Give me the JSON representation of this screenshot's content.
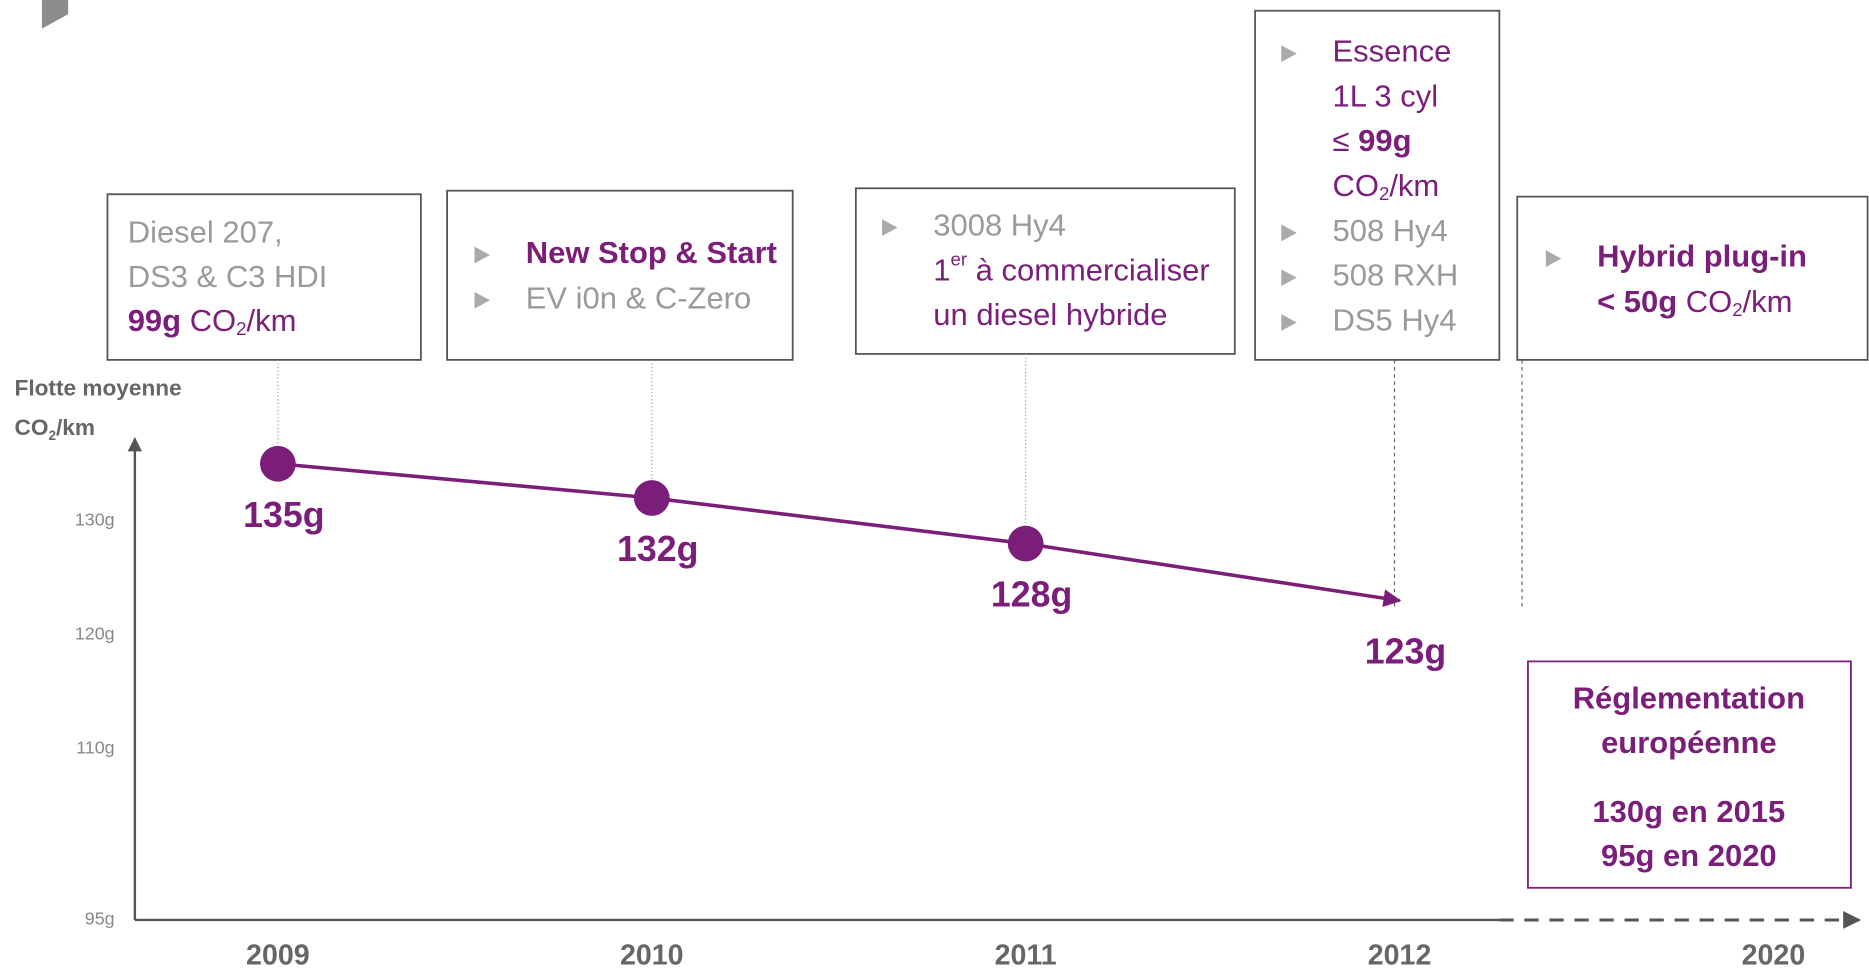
{
  "chart_data": {
    "type": "line",
    "y_label": [
      "Flotte moyenne",
      [
        {
          "t": "CO"
        },
        {
          "t": "2",
          "sub": true
        },
        {
          "t": "/km"
        }
      ]
    ],
    "categories": [
      "2009",
      "2010",
      "2011",
      "2012",
      "2020"
    ],
    "series": [
      {
        "name": "Flotte moyenne",
        "color": "#7b1e7a",
        "values": [
          135,
          132,
          128,
          123,
          null
        ],
        "value_labels": [
          "135g",
          "132g",
          "128g",
          "123g",
          null
        ]
      }
    ],
    "end_arrow": true,
    "ylim": [
      95,
      137
    ],
    "yticks": [
      {
        "value": 95,
        "label": "95g"
      },
      {
        "value": 110,
        "label": "110g"
      },
      {
        "value": 120,
        "label": "120g"
      },
      {
        "value": 130,
        "label": "130g"
      }
    ],
    "grid": false,
    "annotations": [
      {
        "bullets": false,
        "items": [
          {
            "lines": [
              [
                {
                  "t": "Diesel 207,"
                }
              ],
              [
                {
                  "t": "DS3 & C3 HDI"
                }
              ],
              [
                {
                  "t": "99g",
                  "b": true,
                  "p": true
                },
                {
                  "t": " CO",
                  "p": true
                },
                {
                  "t": "2",
                  "sub": true,
                  "p": true
                },
                {
                  "t": "/km",
                  "p": true
                }
              ]
            ]
          }
        ]
      },
      {
        "bullets": true,
        "items": [
          {
            "lines": [
              [
                {
                  "t": "New Stop & Start",
                  "b": true,
                  "p": true
                }
              ]
            ]
          },
          {
            "lines": [
              [
                {
                  "t": "EV i0n & C-Zero"
                }
              ]
            ]
          }
        ]
      },
      {
        "bullets": true,
        "items": [
          {
            "lines": [
              [
                {
                  "t": "3008 Hy4"
                }
              ],
              [
                {
                  "t": "1",
                  "p": true
                },
                {
                  "t": "er",
                  "sup": true,
                  "p": true
                },
                {
                  "t": " à commercialiser",
                  "p": true
                }
              ],
              [
                {
                  "t": "un diesel hybride",
                  "p": true
                }
              ]
            ]
          }
        ]
      },
      {
        "bullets": true,
        "items": [
          {
            "lines": [
              [
                {
                  "t": "Essence",
                  "p": true
                }
              ],
              [
                {
                  "t": "1L 3 cyl",
                  "p": true
                }
              ],
              [
                {
                  "t": "≤ ",
                  "p": true
                },
                {
                  "t": "99g",
                  "b": true,
                  "p": true
                }
              ],
              [
                {
                  "t": "CO",
                  "p": true
                },
                {
                  "t": "2",
                  "sub": true,
                  "p": true
                },
                {
                  "t": "/km",
                  "p": true
                }
              ]
            ]
          },
          {
            "lines": [
              [
                {
                  "t": "508 Hy4"
                }
              ]
            ]
          },
          {
            "lines": [
              [
                {
                  "t": "508 RXH"
                }
              ]
            ]
          },
          {
            "lines": [
              [
                {
                  "t": "DS5 Hy4"
                }
              ]
            ]
          }
        ]
      },
      {
        "bullets": true,
        "items": [
          {
            "lines": [
              [
                {
                  "t": "Hybrid plug-in",
                  "b": true,
                  "p": true
                }
              ],
              [
                {
                  "t": "< 50g",
                  "b": true,
                  "p": true
                },
                {
                  "t": " CO",
                  "p": true
                },
                {
                  "t": "2",
                  "sub": true,
                  "p": true
                },
                {
                  "t": "/km",
                  "p": true
                }
              ]
            ]
          }
        ]
      },
      {
        "bullets": false,
        "items": [
          {
            "lines": [
              [
                {
                  "t": "Réglementation",
                  "b": true,
                  "p": true
                }
              ],
              [
                {
                  "t": "européenne",
                  "b": true,
                  "p": true
                }
              ]
            ]
          },
          {
            "lines": [
              [
                {
                  "t": "130g en 2015",
                  "b": true,
                  "p": true
                }
              ],
              [
                {
                  "t": "95g en 2020",
                  "b": true,
                  "p": true
                }
              ]
            ]
          }
        ]
      }
    ]
  }
}
